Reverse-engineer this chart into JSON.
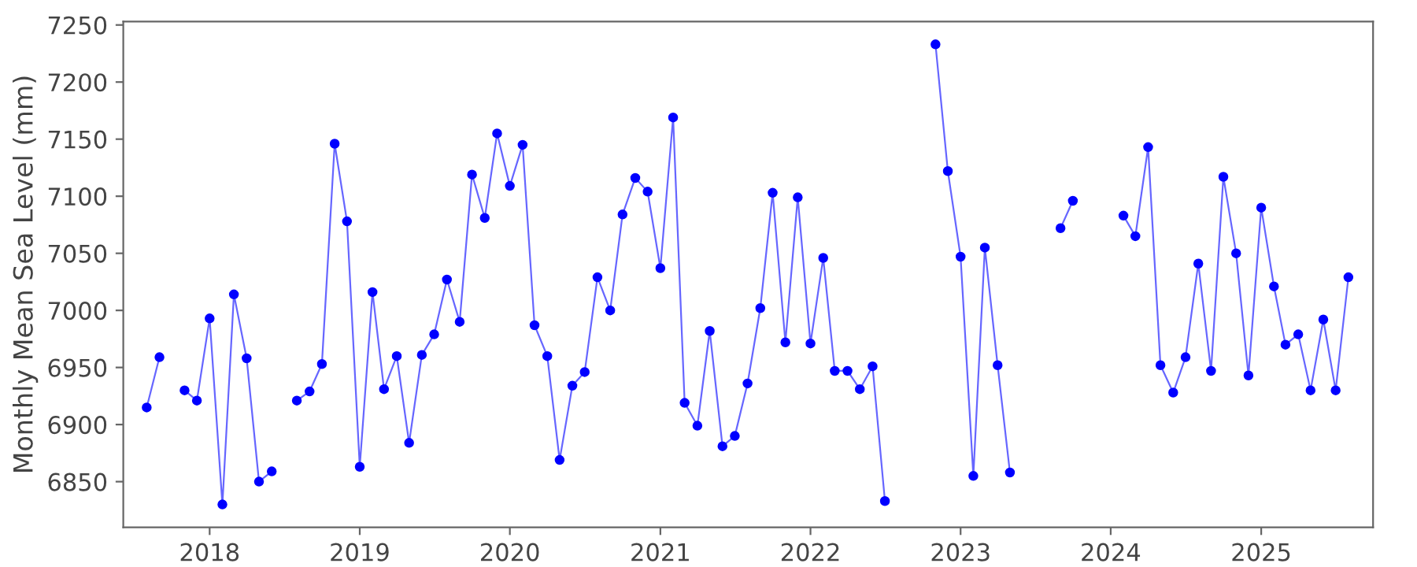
{
  "chart_data": {
    "type": "line",
    "ylabel": "Monthly Mean Sea Level (mm)",
    "x": [
      "2017-08",
      "2017-09",
      "2017-10",
      "2017-11",
      "2017-12",
      "2018-01",
      "2018-02",
      "2018-03",
      "2018-04",
      "2018-05",
      "2018-06",
      "2018-07",
      "2018-08",
      "2018-09",
      "2018-10",
      "2018-11",
      "2018-12",
      "2019-01",
      "2019-02",
      "2019-03",
      "2019-04",
      "2019-05",
      "2019-06",
      "2019-07",
      "2019-08",
      "2019-09",
      "2019-10",
      "2019-11",
      "2019-12",
      "2020-01",
      "2020-02",
      "2020-03",
      "2020-04",
      "2020-05",
      "2020-06",
      "2020-07",
      "2020-08",
      "2020-09",
      "2020-10",
      "2020-11",
      "2020-12",
      "2021-01",
      "2021-02",
      "2021-03",
      "2021-04",
      "2021-05",
      "2021-06",
      "2021-07",
      "2021-08",
      "2021-09",
      "2021-10",
      "2021-11",
      "2021-12",
      "2022-01",
      "2022-02",
      "2022-03",
      "2022-04",
      "2022-05",
      "2022-06",
      "2022-07",
      "2022-08",
      "2022-09",
      "2022-10",
      "2022-11",
      "2022-12",
      "2023-01",
      "2023-02",
      "2023-03",
      "2023-04",
      "2023-05",
      "2023-06",
      "2023-07",
      "2023-08",
      "2023-09",
      "2023-10",
      "2023-11",
      "2023-12",
      "2024-01",
      "2024-02",
      "2024-03",
      "2024-04",
      "2024-05",
      "2024-06",
      "2024-07",
      "2024-08",
      "2024-09",
      "2024-10",
      "2024-11",
      "2024-12",
      "2025-01",
      "2025-02",
      "2025-03",
      "2025-04",
      "2025-05",
      "2025-06",
      "2025-07",
      "2025-08"
    ],
    "series": [
      {
        "color": "#0000ff",
        "values": [
          6915,
          6959,
          null,
          6930,
          6921,
          6993,
          6830,
          7014,
          6958,
          6850,
          6859,
          null,
          6921,
          6929,
          6953,
          7146,
          7078,
          6863,
          7016,
          6931,
          6960,
          6884,
          6961,
          6979,
          7027,
          6990,
          7119,
          7081,
          7155,
          7109,
          7145,
          6987,
          6960,
          6869,
          6934,
          6946,
          7029,
          7000,
          7084,
          7116,
          7104,
          7037,
          7169,
          6919,
          6899,
          6982,
          6881,
          6890,
          6936,
          7002,
          7103,
          6972,
          7099,
          6971,
          7046,
          6947,
          6947,
          6931,
          6951,
          6833,
          null,
          null,
          null,
          7233,
          7122,
          7047,
          6855,
          7055,
          6952,
          6858,
          null,
          null,
          null,
          7072,
          7096,
          null,
          null,
          null,
          7083,
          7065,
          7143,
          6952,
          6928,
          6959,
          7041,
          6947,
          7117,
          7050,
          6943,
          7090,
          7021,
          6970,
          6979,
          6930,
          6992,
          6930,
          7029
        ]
      }
    ],
    "xlim": [
      "2017-06-05",
      "2025-09-30"
    ],
    "xticks": [
      {
        "value": "2018-01",
        "label": "2018"
      },
      {
        "value": "2019-01",
        "label": "2019"
      },
      {
        "value": "2020-01",
        "label": "2020"
      },
      {
        "value": "2021-01",
        "label": "2021"
      },
      {
        "value": "2022-01",
        "label": "2022"
      },
      {
        "value": "2023-01",
        "label": "2023"
      },
      {
        "value": "2024-01",
        "label": "2024"
      },
      {
        "value": "2025-01",
        "label": "2025"
      }
    ],
    "ylim": [
      6810,
      7253
    ],
    "yticks": [
      6850,
      6900,
      6950,
      7000,
      7050,
      7100,
      7150,
      7200,
      7250
    ],
    "marker": "circle",
    "line_style": "solid"
  }
}
